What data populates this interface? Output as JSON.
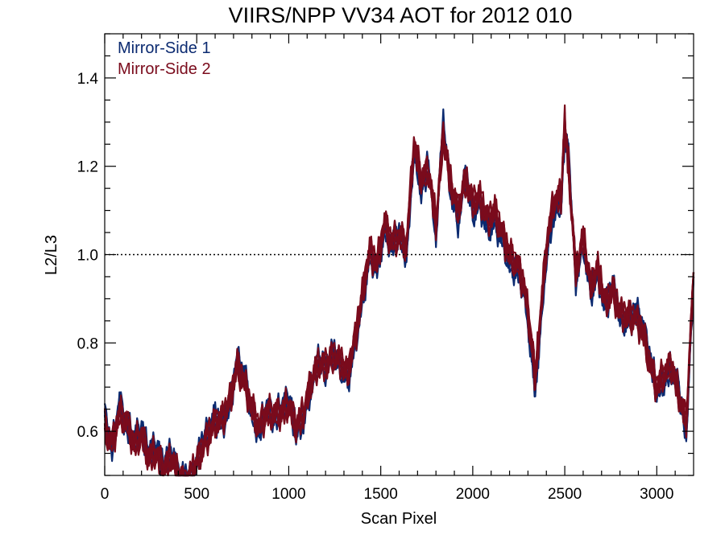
{
  "chart_data": {
    "type": "line",
    "title": "VIIRS/NPP VV34 AOT for 2012 010",
    "xlabel": "Scan Pixel",
    "ylabel": "L2/L3",
    "xlim": [
      0,
      3200
    ],
    "ylim": [
      0.5,
      1.5
    ],
    "xticks": [
      0,
      500,
      1000,
      1500,
      2000,
      2500,
      3000
    ],
    "xtick_labels": [
      "0",
      "500",
      "1000",
      "1500",
      "2000",
      "2500",
      "3000"
    ],
    "yticks": [
      0.6,
      0.8,
      1.0,
      1.2,
      1.4
    ],
    "ytick_labels": [
      "0.6",
      "0.8",
      "1.0",
      "1.2",
      "1.4"
    ],
    "reference_line": {
      "y": 1.0,
      "style": "dotted",
      "color": "#000000"
    },
    "legend_position": "top-left",
    "grid": false,
    "x": [
      0,
      40,
      80,
      120,
      160,
      200,
      240,
      280,
      320,
      360,
      400,
      440,
      480,
      520,
      560,
      600,
      640,
      680,
      720,
      760,
      800,
      840,
      880,
      920,
      960,
      1000,
      1040,
      1080,
      1120,
      1160,
      1200,
      1240,
      1280,
      1320,
      1360,
      1400,
      1440,
      1480,
      1520,
      1560,
      1600,
      1640,
      1680,
      1720,
      1760,
      1800,
      1840,
      1880,
      1920,
      1960,
      2000,
      2040,
      2080,
      2120,
      2160,
      2200,
      2240,
      2280,
      2320,
      2340,
      2360,
      2400,
      2440,
      2480,
      2500,
      2520,
      2560,
      2600,
      2640,
      2680,
      2720,
      2760,
      2800,
      2840,
      2880,
      2920,
      2960,
      3000,
      3040,
      3080,
      3120,
      3160,
      3200
    ],
    "series": [
      {
        "name": "Mirror-Side 1",
        "color": "#0b2a70",
        "values": [
          0.63,
          0.56,
          0.66,
          0.61,
          0.58,
          0.6,
          0.55,
          0.56,
          0.52,
          0.55,
          0.5,
          0.49,
          0.5,
          0.56,
          0.6,
          0.63,
          0.62,
          0.66,
          0.76,
          0.72,
          0.64,
          0.6,
          0.65,
          0.63,
          0.65,
          0.67,
          0.6,
          0.63,
          0.7,
          0.76,
          0.74,
          0.78,
          0.75,
          0.72,
          0.8,
          0.9,
          1.0,
          0.97,
          1.06,
          1.02,
          1.05,
          1.0,
          1.24,
          1.15,
          1.2,
          1.05,
          1.29,
          1.15,
          1.08,
          1.18,
          1.1,
          1.12,
          1.06,
          1.08,
          1.04,
          0.98,
          0.97,
          0.92,
          0.78,
          0.7,
          0.8,
          1.0,
          1.1,
          1.12,
          1.28,
          1.22,
          0.95,
          1.03,
          0.92,
          0.96,
          0.88,
          0.93,
          0.86,
          0.85,
          0.87,
          0.84,
          0.77,
          0.69,
          0.72,
          0.74,
          0.69,
          0.6,
          0.95
        ]
      },
      {
        "name": "Mirror-Side 2",
        "color": "#7a0b1c",
        "values": [
          0.61,
          0.57,
          0.64,
          0.62,
          0.57,
          0.59,
          0.54,
          0.55,
          0.51,
          0.54,
          0.5,
          0.48,
          0.51,
          0.55,
          0.59,
          0.62,
          0.63,
          0.67,
          0.75,
          0.71,
          0.65,
          0.61,
          0.64,
          0.64,
          0.64,
          0.66,
          0.61,
          0.64,
          0.71,
          0.75,
          0.75,
          0.77,
          0.76,
          0.73,
          0.81,
          0.91,
          1.01,
          0.98,
          1.07,
          1.03,
          1.04,
          1.02,
          1.25,
          1.17,
          1.19,
          1.07,
          1.27,
          1.16,
          1.1,
          1.17,
          1.12,
          1.13,
          1.08,
          1.1,
          1.05,
          1.0,
          0.98,
          0.93,
          0.8,
          0.72,
          0.82,
          1.02,
          1.12,
          1.13,
          1.3,
          1.2,
          0.96,
          1.04,
          0.93,
          0.97,
          0.89,
          0.92,
          0.87,
          0.86,
          0.86,
          0.83,
          0.76,
          0.7,
          0.73,
          0.75,
          0.68,
          0.62,
          0.96
        ]
      }
    ]
  }
}
